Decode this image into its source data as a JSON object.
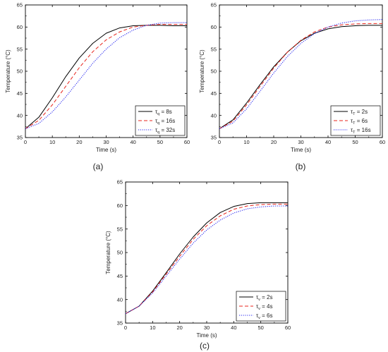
{
  "chart_data": [
    {
      "panel_label": "(a)",
      "type": "line",
      "xlabel": "Time (s)",
      "ylabel": "Temperature (°C)",
      "xlim": [
        0,
        60
      ],
      "ylim": [
        35,
        65
      ],
      "xticks": [
        0,
        10,
        20,
        30,
        40,
        50,
        60
      ],
      "yticks": [
        35,
        40,
        45,
        50,
        55,
        60,
        65
      ],
      "grid": false,
      "legend_position": "bottom-right",
      "legend_symbol": "τ",
      "x": [
        0,
        5,
        10,
        15,
        20,
        25,
        30,
        35,
        40,
        45,
        50,
        55,
        60
      ],
      "series": [
        {
          "name": "8s",
          "subscript": "q",
          "color": "#000000",
          "dash": "solid",
          "values": [
            37.0,
            39.6,
            44.0,
            48.8,
            53.0,
            56.3,
            58.6,
            59.8,
            60.3,
            60.4,
            60.4,
            60.3,
            60.3
          ]
        },
        {
          "name": "16s",
          "subscript": "q",
          "color": "#e8241c",
          "dash": "dashed",
          "values": [
            37.0,
            38.9,
            42.4,
            46.6,
            50.8,
            54.4,
            57.1,
            58.9,
            60.0,
            60.4,
            60.6,
            60.6,
            60.6
          ]
        },
        {
          "name": "32s",
          "subscript": "q",
          "color": "#2a2af0",
          "dash": "dotted",
          "values": [
            37.0,
            38.2,
            40.8,
            44.2,
            48.0,
            51.8,
            55.0,
            57.6,
            59.3,
            60.4,
            60.9,
            61.0,
            61.0
          ]
        }
      ]
    },
    {
      "panel_label": "(b)",
      "type": "line",
      "xlabel": "Time (s)",
      "ylabel": "Temperature (°C)",
      "xlim": [
        0,
        60
      ],
      "ylim": [
        35,
        65
      ],
      "xticks": [
        0,
        10,
        20,
        30,
        40,
        50,
        60
      ],
      "yticks": [
        35,
        40,
        45,
        50,
        55,
        60,
        65
      ],
      "grid": false,
      "legend_position": "bottom-right",
      "legend_symbol": "τ",
      "x": [
        0,
        5,
        10,
        15,
        20,
        25,
        30,
        35,
        40,
        45,
        50,
        55,
        60
      ],
      "series": [
        {
          "name": "2s",
          "subscript": "T",
          "color": "#000000",
          "dash": "solid",
          "values": [
            37.0,
            39.0,
            42.8,
            47.0,
            51.0,
            54.3,
            56.9,
            58.6,
            59.6,
            60.1,
            60.3,
            60.4,
            60.4
          ]
        },
        {
          "name": "6s",
          "subscript": "T",
          "color": "#e8241c",
          "dash": "dashed",
          "values": [
            37.0,
            38.7,
            42.4,
            46.6,
            50.7,
            54.3,
            57.0,
            58.9,
            60.0,
            60.5,
            60.7,
            60.8,
            60.8
          ]
        },
        {
          "name": "16s",
          "subscript": "T",
          "color": "#2a2af0",
          "dash": "dotted",
          "values": [
            37.0,
            38.3,
            41.5,
            45.5,
            49.6,
            53.3,
            56.3,
            58.5,
            60.0,
            60.9,
            61.4,
            61.6,
            61.7
          ]
        }
      ]
    },
    {
      "panel_label": "(c)",
      "type": "line",
      "xlabel": "Time (s)",
      "ylabel": "Temperature (°C)",
      "xlim": [
        0,
        60
      ],
      "ylim": [
        35,
        65
      ],
      "xticks": [
        0,
        10,
        20,
        30,
        40,
        50,
        60
      ],
      "yticks": [
        35,
        40,
        45,
        50,
        55,
        60,
        65
      ],
      "grid": false,
      "legend_position": "bottom-right",
      "legend_symbol": "τ",
      "x": [
        0,
        5,
        10,
        15,
        20,
        25,
        30,
        35,
        40,
        45,
        50,
        55,
        60
      ],
      "series": [
        {
          "name": "2s",
          "subscript": "v",
          "color": "#000000",
          "dash": "solid",
          "values": [
            37.0,
            38.6,
            41.8,
            45.7,
            49.7,
            53.3,
            56.3,
            58.5,
            59.8,
            60.4,
            60.6,
            60.6,
            60.6
          ]
        },
        {
          "name": "4s",
          "subscript": "v",
          "color": "#e8241c",
          "dash": "dashed",
          "values": [
            37.0,
            38.6,
            41.6,
            45.4,
            49.2,
            52.8,
            55.7,
            57.8,
            59.2,
            59.9,
            60.2,
            60.3,
            60.3
          ]
        },
        {
          "name": "6s",
          "subscript": "v",
          "color": "#2a2af0",
          "dash": "dotted",
          "values": [
            37.0,
            38.6,
            41.4,
            45.0,
            48.6,
            52.0,
            54.8,
            56.9,
            58.4,
            59.3,
            59.7,
            59.9,
            59.9
          ]
        }
      ]
    }
  ]
}
